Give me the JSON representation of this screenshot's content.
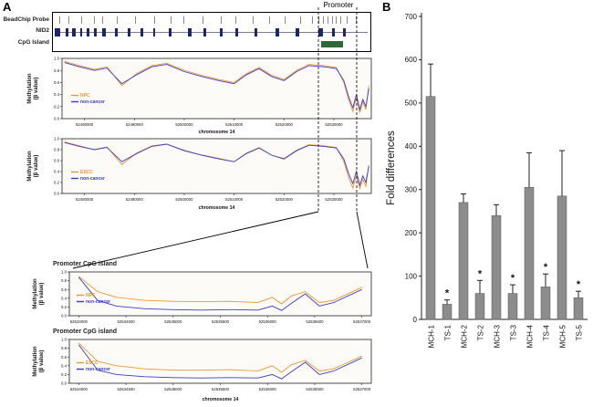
{
  "figure": {
    "panel_a_label": "A",
    "panel_b_label": "B"
  },
  "gene_track": {
    "promoter_label": "Promoter",
    "row_labels": [
      "BeadChip Probe",
      "NID2",
      "CpG Island"
    ],
    "probe_fracs": [
      0.02,
      0.05,
      0.09,
      0.13,
      0.155,
      0.2,
      0.26,
      0.32,
      0.37,
      0.41,
      0.47,
      0.53,
      0.575,
      0.63,
      0.68,
      0.73,
      0.78,
      0.815,
      0.835,
      0.85,
      0.865,
      0.878,
      0.89,
      0.905,
      0.925,
      0.955
    ],
    "exons": [
      {
        "x": 0.006,
        "w": 0.018
      },
      {
        "x": 0.04,
        "w": 0.008
      },
      {
        "x": 0.06,
        "w": 0.012
      },
      {
        "x": 0.085,
        "w": 0.008
      },
      {
        "x": 0.105,
        "w": 0.01
      },
      {
        "x": 0.13,
        "w": 0.008
      },
      {
        "x": 0.155,
        "w": 0.012
      },
      {
        "x": 0.195,
        "w": 0.01
      },
      {
        "x": 0.235,
        "w": 0.008
      },
      {
        "x": 0.275,
        "w": 0.01
      },
      {
        "x": 0.315,
        "w": 0.008
      },
      {
        "x": 0.365,
        "w": 0.01
      },
      {
        "x": 0.425,
        "w": 0.012
      },
      {
        "x": 0.475,
        "w": 0.008
      },
      {
        "x": 0.525,
        "w": 0.01
      },
      {
        "x": 0.575,
        "w": 0.008
      },
      {
        "x": 0.635,
        "w": 0.01
      },
      {
        "x": 0.7,
        "w": 0.012
      },
      {
        "x": 0.765,
        "w": 0.01
      },
      {
        "x": 0.835,
        "w": 0.016
      },
      {
        "x": 0.878,
        "w": 0.01
      },
      {
        "x": 0.915,
        "w": 0.008
      }
    ],
    "cpg_island": {
      "x": 0.845,
      "w": 0.068
    },
    "colors": {
      "probe": "#8d8d7e",
      "exon": "#1e2766",
      "gene_line": "#7d7d9c",
      "island": "#2d6b36"
    }
  },
  "chart_data": [
    {
      "id": "npc_genome",
      "type": "line",
      "title": "",
      "ylabel": "Methylation (β value)",
      "ylabel_lines": [
        "Methylation",
        "(β value)"
      ],
      "xlabel": "chromosome 14",
      "xlim": [
        52475500,
        52537500
      ],
      "ylim": [
        0,
        1
      ],
      "yticks": [
        0.0,
        0.2,
        0.4,
        0.6,
        0.8,
        1.0
      ],
      "xticks": [
        52480000,
        52490000,
        52500000,
        52510000,
        52520000,
        52530000
      ],
      "legend": [
        {
          "name": "NPC",
          "color": "#f2962e"
        },
        {
          "name": "non-cancer",
          "color": "#3c3ccc"
        }
      ],
      "series": [
        {
          "name": "NPC",
          "color": "#f2962e",
          "x": [
            52476000,
            52479000,
            52482000,
            52484500,
            52487500,
            52490500,
            52493500,
            52496500,
            52500000,
            52503500,
            52507000,
            52510000,
            52512500,
            52515000,
            52517500,
            52520000,
            52522500,
            52525000,
            52528000,
            52530500,
            52532000,
            52533000,
            52533800,
            52534500,
            52535200,
            52535800,
            52536400,
            52537000
          ],
          "y": [
            0.95,
            0.88,
            0.82,
            0.86,
            0.55,
            0.75,
            0.88,
            0.92,
            0.8,
            0.72,
            0.65,
            0.6,
            0.75,
            0.85,
            0.72,
            0.65,
            0.8,
            0.9,
            0.88,
            0.85,
            0.6,
            0.3,
            0.12,
            0.35,
            0.1,
            0.28,
            0.15,
            0.55
          ]
        },
        {
          "name": "non-cancer",
          "color": "#3c3ccc",
          "x": [
            52476000,
            52479000,
            52482000,
            52484500,
            52487500,
            52490500,
            52493500,
            52496500,
            52500000,
            52503500,
            52507000,
            52510000,
            52512500,
            52515000,
            52517500,
            52520000,
            52522500,
            52525000,
            52528000,
            52530500,
            52532000,
            52533000,
            52533800,
            52534500,
            52535200,
            52535800,
            52536400,
            52537000
          ],
          "y": [
            0.93,
            0.86,
            0.8,
            0.84,
            0.58,
            0.73,
            0.86,
            0.9,
            0.78,
            0.7,
            0.63,
            0.58,
            0.73,
            0.83,
            0.7,
            0.63,
            0.78,
            0.88,
            0.86,
            0.83,
            0.63,
            0.35,
            0.18,
            0.4,
            0.15,
            0.32,
            0.2,
            0.5
          ]
        }
      ]
    },
    {
      "id": "escc_genome",
      "type": "line",
      "title": "",
      "ylabel": "Methylation (β value)",
      "ylabel_lines": [
        "Methylation",
        "(β value)"
      ],
      "xlabel": "chromosome 14",
      "xlim": [
        52475500,
        52537500
      ],
      "ylim": [
        0,
        1
      ],
      "yticks": [
        0.0,
        0.2,
        0.4,
        0.6,
        0.8,
        1.0
      ],
      "xticks": [
        52480000,
        52490000,
        52500000,
        52510000,
        52520000,
        52530000
      ],
      "legend": [
        {
          "name": "ESCC",
          "color": "#f2962e"
        },
        {
          "name": "non-cancer",
          "color": "#3c3ccc"
        }
      ],
      "series": [
        {
          "name": "ESCC",
          "color": "#f2962e",
          "x": [
            52476000,
            52479000,
            52482000,
            52484500,
            52487500,
            52490500,
            52493500,
            52496500,
            52500000,
            52503500,
            52507000,
            52510000,
            52512500,
            52515000,
            52517500,
            52520000,
            52522500,
            52525000,
            52528000,
            52530500,
            52532000,
            52533000,
            52533800,
            52534500,
            52535200,
            52535800,
            52536400,
            52537000
          ],
          "y": [
            0.94,
            0.87,
            0.8,
            0.85,
            0.53,
            0.74,
            0.87,
            0.9,
            0.79,
            0.7,
            0.64,
            0.58,
            0.74,
            0.84,
            0.7,
            0.64,
            0.79,
            0.89,
            0.87,
            0.84,
            0.58,
            0.28,
            0.1,
            0.33,
            0.09,
            0.26,
            0.13,
            0.52
          ]
        },
        {
          "name": "non-cancer",
          "color": "#3c3ccc",
          "x": [
            52476000,
            52479000,
            52482000,
            52484500,
            52487500,
            52490500,
            52493500,
            52496500,
            52500000,
            52503500,
            52507000,
            52510000,
            52512500,
            52515000,
            52517500,
            52520000,
            52522500,
            52525000,
            52528000,
            52530500,
            52532000,
            52533000,
            52533800,
            52534500,
            52535200,
            52535800,
            52536400,
            52537000
          ],
          "y": [
            0.93,
            0.86,
            0.8,
            0.84,
            0.58,
            0.73,
            0.86,
            0.9,
            0.78,
            0.7,
            0.63,
            0.58,
            0.73,
            0.83,
            0.7,
            0.63,
            0.78,
            0.88,
            0.86,
            0.83,
            0.63,
            0.35,
            0.18,
            0.4,
            0.15,
            0.32,
            0.2,
            0.5
          ]
        }
      ]
    },
    {
      "id": "npc_promoter_zoom",
      "type": "line",
      "title": "Promoter CpG island",
      "ylabel": "Methylation (β value)",
      "ylabel_lines": [
        "Methylation",
        "(β value)"
      ],
      "xlabel": "",
      "xlim": [
        52533900,
        52537100
      ],
      "ylim": [
        0,
        1
      ],
      "yticks": [
        0.0,
        0.2,
        0.4,
        0.6,
        0.8,
        1.0
      ],
      "xticks": [
        52534000,
        52534500,
        52535000,
        52535500,
        52536000,
        52536500,
        52537000
      ],
      "legend": [
        {
          "name": "NPC",
          "color": "#f2962e"
        },
        {
          "name": "non-cancer",
          "color": "#3c3ccc"
        }
      ],
      "series": [
        {
          "name": "NPC",
          "color": "#f2962e",
          "x": [
            52534000,
            52534200,
            52534400,
            52534700,
            52535000,
            52535300,
            52535600,
            52535900,
            52536050,
            52536150,
            52536250,
            52536400,
            52536550,
            52536700,
            52537000
          ],
          "y": [
            0.9,
            0.55,
            0.42,
            0.35,
            0.33,
            0.32,
            0.33,
            0.3,
            0.42,
            0.27,
            0.45,
            0.55,
            0.3,
            0.35,
            0.65
          ]
        },
        {
          "name": "non-cancer",
          "color": "#3c3ccc",
          "x": [
            52534000,
            52534200,
            52534400,
            52534700,
            52535000,
            52535300,
            52535600,
            52535900,
            52536050,
            52536150,
            52536250,
            52536400,
            52536550,
            52536700,
            52537000
          ],
          "y": [
            0.88,
            0.35,
            0.22,
            0.16,
            0.14,
            0.13,
            0.14,
            0.13,
            0.22,
            0.12,
            0.28,
            0.5,
            0.22,
            0.3,
            0.6
          ]
        }
      ]
    },
    {
      "id": "escc_promoter_zoom",
      "type": "line",
      "title": "Promoter CpG island",
      "ylabel": "Methylation (β value)",
      "ylabel_lines": [
        "Methylation",
        "(β value)"
      ],
      "xlabel": "chromosome 14",
      "xlim": [
        52533900,
        52537100
      ],
      "ylim": [
        0,
        1
      ],
      "yticks": [
        0.0,
        0.2,
        0.4,
        0.6,
        0.8,
        1.0
      ],
      "xticks": [
        52534000,
        52534500,
        52535000,
        52535500,
        52536000,
        52536500,
        52537000
      ],
      "legend": [
        {
          "name": "ESCC",
          "color": "#f2962e"
        },
        {
          "name": "non-cancer",
          "color": "#3c3ccc"
        }
      ],
      "series": [
        {
          "name": "ESCC",
          "color": "#f2962e",
          "x": [
            52534000,
            52534200,
            52534400,
            52534700,
            52535000,
            52535300,
            52535600,
            52535900,
            52536050,
            52536150,
            52536250,
            52536400,
            52536550,
            52536700,
            52537000
          ],
          "y": [
            0.92,
            0.5,
            0.4,
            0.33,
            0.3,
            0.3,
            0.31,
            0.28,
            0.4,
            0.25,
            0.42,
            0.52,
            0.28,
            0.33,
            0.62
          ]
        },
        {
          "name": "non-cancer",
          "color": "#3c3ccc",
          "x": [
            52534000,
            52534200,
            52534400,
            52534700,
            52535000,
            52535300,
            52535600,
            52535900,
            52536050,
            52536150,
            52536250,
            52536400,
            52536550,
            52536700,
            52537000
          ],
          "y": [
            0.88,
            0.3,
            0.2,
            0.15,
            0.13,
            0.12,
            0.13,
            0.12,
            0.2,
            0.1,
            0.26,
            0.48,
            0.2,
            0.28,
            0.58
          ]
        }
      ]
    },
    {
      "id": "fold_differences",
      "type": "bar",
      "title": "",
      "ylabel": "Fold differences",
      "xlabel": "",
      "ylim": [
        0,
        700
      ],
      "yticks": [
        0,
        100,
        200,
        300,
        400,
        500,
        600,
        700
      ],
      "categories": [
        "MCH-1",
        "TS-1",
        "MCH-2",
        "TS-2",
        "MCH-3",
        "TS-3",
        "MCH-4",
        "TS-4",
        "MCH-5",
        "TS-5"
      ],
      "values": [
        515,
        35,
        270,
        60,
        240,
        60,
        305,
        75,
        285,
        50
      ],
      "errors": [
        75,
        10,
        20,
        30,
        25,
        20,
        80,
        30,
        105,
        15
      ],
      "significance": [
        "",
        "*",
        "",
        "*",
        "",
        "*",
        "",
        "*",
        "",
        "*"
      ],
      "bar_color": "#8c8c8c"
    }
  ]
}
